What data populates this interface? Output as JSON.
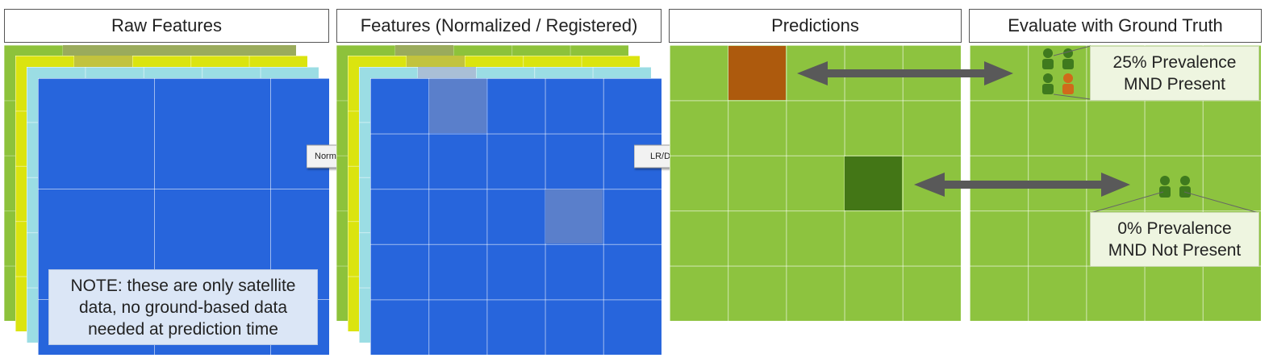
{
  "headers": {
    "raw": "Raw Features",
    "normalized": "Features (Normalized / Registered)",
    "predictions": "Predictions",
    "evaluate": "Evaluate with Ground Truth"
  },
  "arrows": {
    "normalize": "Normalize",
    "lrda": "LR/DA"
  },
  "note": {
    "line1": "NOTE: these are only satellite",
    "line2": "data, no ground-based data",
    "line3": "needed at prediction time"
  },
  "ground_truth": {
    "present": {
      "prevalence": "25% Prevalence",
      "status": "MND Present"
    },
    "absent": {
      "prevalence": "0% Prevalence",
      "status": "MND Not Present"
    }
  },
  "colors": {
    "feature_blue": "#2765dc",
    "layer_cyan": "#9bdde4",
    "layer_yellow": "#dbe40f",
    "layer_green": "#8dc23b",
    "field_green": "#8dc33f",
    "positive_orange": "#ad5a0d",
    "negative_green": "#437616",
    "arrow_gray": "#595959",
    "person_green": "#3f7a1e",
    "person_orange": "#d06a1a"
  },
  "icons": [
    "arrow-right-icon",
    "double-arrow-icon",
    "person-icon"
  ]
}
